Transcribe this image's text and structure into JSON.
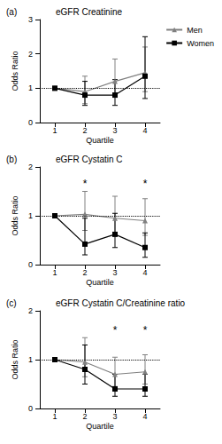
{
  "chart_data": [
    {
      "type": "line",
      "panel_label": "(a)",
      "title": "eGFR Creatinine",
      "x_label": "Quartile",
      "y_label": "Odds Ratio",
      "categories": [
        "1",
        "2",
        "3",
        "4"
      ],
      "ylim": [
        0,
        3
      ],
      "yticks": [
        0,
        1,
        2,
        3
      ],
      "grid": false,
      "legend": "top-right",
      "reference_line": 1,
      "series": [
        {
          "name": "Men",
          "color": "#808080",
          "marker": "triangle",
          "values": [
            1,
            0.9,
            1.2,
            1.45
          ],
          "error_low": [
            1,
            0.55,
            0.75,
            0.9
          ],
          "error_high": [
            1,
            1.35,
            1.85,
            2.2
          ]
        },
        {
          "name": "Women",
          "color": "#000000",
          "marker": "square",
          "values": [
            1,
            0.8,
            0.8,
            1.35
          ],
          "error_low": [
            1,
            0.5,
            0.5,
            0.7
          ],
          "error_high": [
            1,
            1.2,
            1.25,
            2.5
          ]
        }
      ],
      "annotations": []
    },
    {
      "type": "line",
      "panel_label": "(b)",
      "title": "eGFR Cystatin C",
      "x_label": "Quartile",
      "y_label": "Odds Ratio",
      "categories": [
        "1",
        "2",
        "3",
        "4"
      ],
      "ylim": [
        0,
        2
      ],
      "yticks": [
        0,
        1,
        2
      ],
      "grid": false,
      "reference_line": 1,
      "series": [
        {
          "name": "Men",
          "color": "#808080",
          "marker": "triangle",
          "values": [
            1,
            1.03,
            0.95,
            0.9
          ],
          "error_low": [
            1,
            0.7,
            0.65,
            0.6
          ],
          "error_high": [
            1,
            1.5,
            1.4,
            1.35
          ]
        },
        {
          "name": "Women",
          "color": "#000000",
          "marker": "square",
          "values": [
            1,
            0.42,
            0.62,
            0.35
          ],
          "error_low": [
            1,
            0.2,
            0.35,
            0.15
          ],
          "error_high": [
            1,
            0.95,
            1.05,
            0.65
          ]
        }
      ],
      "annotations": [
        {
          "x": "2",
          "y": 1.65,
          "text": "*"
        },
        {
          "x": "4",
          "y": 1.65,
          "text": "*"
        }
      ]
    },
    {
      "type": "line",
      "panel_label": "(c)",
      "title": "eGFR Cystatin C/Creatinine ratio",
      "x_label": "Quartile",
      "y_label": "Odds Ratio",
      "categories": [
        "1",
        "2",
        "3",
        "4"
      ],
      "ylim": [
        0,
        2
      ],
      "yticks": [
        0,
        1,
        2
      ],
      "grid": false,
      "reference_line": 1,
      "series": [
        {
          "name": "Men",
          "color": "#808080",
          "marker": "triangle",
          "values": [
            1,
            0.95,
            0.7,
            0.75
          ],
          "error_low": [
            1,
            0.65,
            0.45,
            0.5
          ],
          "error_high": [
            1,
            1.45,
            1.05,
            1.1
          ]
        },
        {
          "name": "Women",
          "color": "#000000",
          "marker": "square",
          "values": [
            1,
            0.8,
            0.4,
            0.4
          ],
          "error_low": [
            1,
            0.5,
            0.25,
            0.25
          ],
          "error_high": [
            1,
            1.3,
            0.7,
            0.7
          ]
        }
      ],
      "annotations": [
        {
          "x": "3",
          "y": 1.6,
          "text": "*"
        },
        {
          "x": "4",
          "y": 1.6,
          "text": "*"
        }
      ]
    }
  ]
}
